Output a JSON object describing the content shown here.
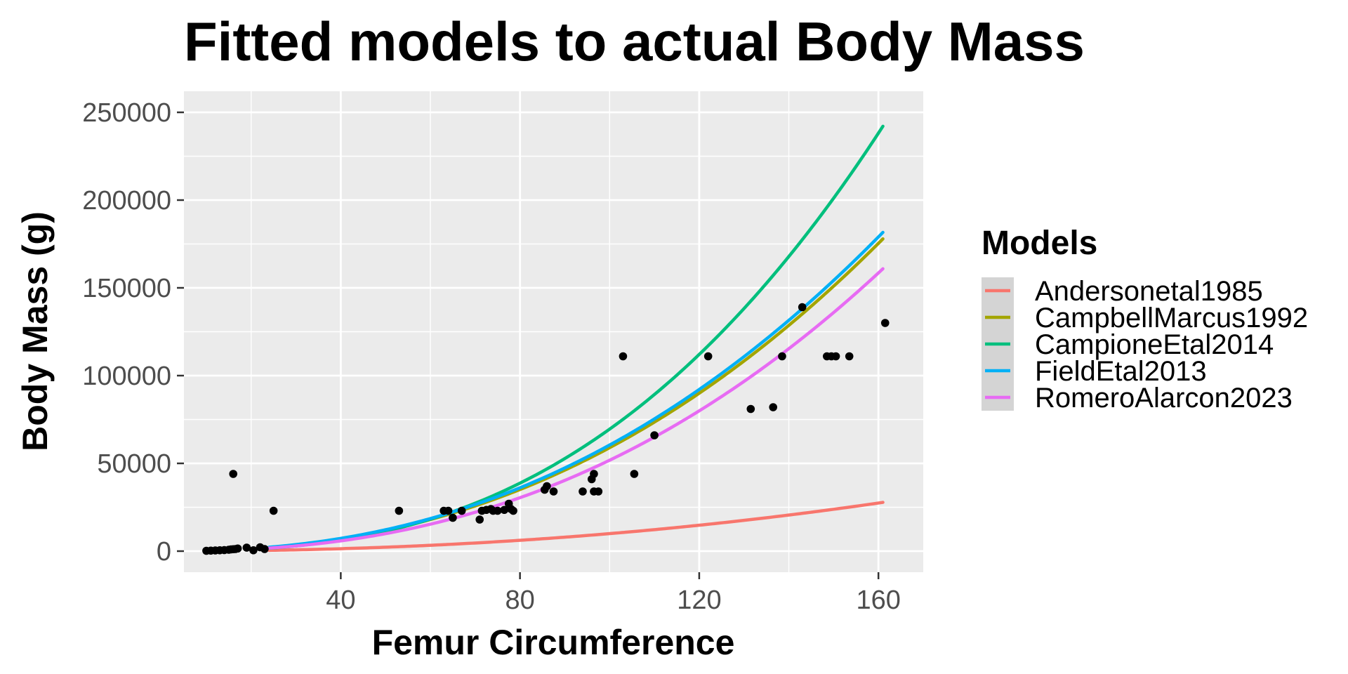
{
  "chart_data": {
    "type": "scatter",
    "title": "Fitted models to actual Body Mass",
    "xlabel": "Femur Circumference",
    "ylabel": "Body Mass (g)",
    "xlim": [
      5,
      170
    ],
    "ylim": [
      -12000,
      262000
    ],
    "x_ticks": [
      40,
      80,
      120,
      160
    ],
    "y_ticks": [
      0,
      50000,
      100000,
      150000,
      200000,
      250000
    ],
    "x_tick_labels": [
      "40",
      "80",
      "120",
      "160"
    ],
    "y_tick_labels": [
      "0",
      "50000",
      "100000",
      "150000",
      "200000",
      "250000"
    ],
    "grid": true,
    "legend": {
      "title": "Models",
      "position": "right"
    },
    "points": [
      [
        10,
        200
      ],
      [
        11,
        300
      ],
      [
        12,
        400
      ],
      [
        13,
        500
      ],
      [
        14,
        600
      ],
      [
        15,
        800
      ],
      [
        15.5,
        1000
      ],
      [
        16,
        1100
      ],
      [
        16.5,
        1200
      ],
      [
        17,
        1500
      ],
      [
        19,
        2000
      ],
      [
        20.5,
        500
      ],
      [
        22,
        2200
      ],
      [
        23,
        1200
      ],
      [
        16,
        44000
      ],
      [
        25,
        23000
      ],
      [
        53,
        23000
      ],
      [
        63,
        23000
      ],
      [
        64,
        23000
      ],
      [
        65,
        19000
      ],
      [
        67,
        23000
      ],
      [
        71,
        18000
      ],
      [
        71.5,
        23000
      ],
      [
        72.5,
        23500
      ],
      [
        73.5,
        24000
      ],
      [
        74,
        23000
      ],
      [
        75,
        23000
      ],
      [
        76.5,
        23500
      ],
      [
        77.5,
        27000
      ],
      [
        78,
        24000
      ],
      [
        78.5,
        23000
      ],
      [
        85.5,
        35000
      ],
      [
        86,
        37000
      ],
      [
        87.5,
        34000
      ],
      [
        94,
        34000
      ],
      [
        96,
        41000
      ],
      [
        96.5,
        44000
      ],
      [
        96.5,
        34000
      ],
      [
        97.5,
        34000
      ],
      [
        103,
        111000
      ],
      [
        105.5,
        44000
      ],
      [
        110,
        66000
      ],
      [
        122,
        111000
      ],
      [
        131.5,
        81000
      ],
      [
        136.5,
        82000
      ],
      [
        138.5,
        111000
      ],
      [
        143,
        139000
      ],
      [
        148.5,
        111000
      ],
      [
        149.5,
        111000
      ],
      [
        150.5,
        111000
      ],
      [
        153.5,
        111000
      ],
      [
        161.5,
        130000
      ]
    ],
    "curve_x_range": [
      24,
      161
    ],
    "series": [
      {
        "name": "Andersonetal1985",
        "color": "#F8766D",
        "a": 0.5,
        "b": 2.15
      },
      {
        "name": "CampbellMarcus1992",
        "color": "#A3A500",
        "a": 1.35,
        "b": 2.32
      },
      {
        "name": "CampioneEtal2014",
        "color": "#00BF7D",
        "a": 0.4,
        "b": 2.62
      },
      {
        "name": "FieldEtal2013",
        "color": "#00B0F6",
        "a": 1.45,
        "b": 2.31
      },
      {
        "name": "RomeroAlarcon2023",
        "color": "#E76BF3",
        "a": 0.9,
        "b": 2.38
      }
    ]
  }
}
